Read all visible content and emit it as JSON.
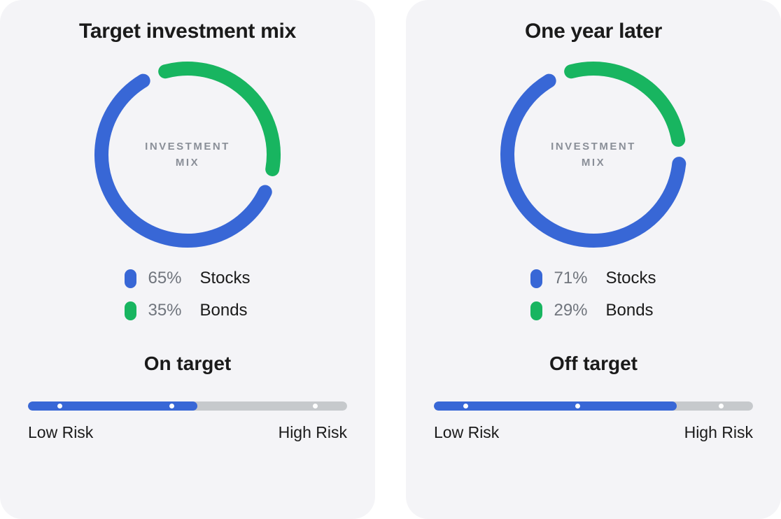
{
  "colors": {
    "stocks": "#3867d6",
    "bonds": "#18b560",
    "card_bg": "#f4f4f7",
    "bar_bg": "#c6c9cc",
    "dot": "#ffffff",
    "center_text": "#8a8f98",
    "pct_text": "#70757d",
    "text": "#1a1a1a"
  },
  "donut": {
    "size": 270,
    "stroke": 20,
    "start_angle_deg": -15,
    "gap_deg": 16,
    "center_line1": "INVESTMENT",
    "center_line2": "MIX"
  },
  "risk_bar": {
    "dot_positions_pct": [
      10,
      45,
      90
    ],
    "low_label": "Low Risk",
    "high_label": "High Risk"
  },
  "cards": [
    {
      "title": "Target investment mix",
      "series": [
        {
          "key": "stocks",
          "label": "Stocks",
          "value": 65,
          "color": "#3867d6"
        },
        {
          "key": "bonds",
          "label": "Bonds",
          "value": 35,
          "color": "#18b560"
        }
      ],
      "status": "On target",
      "risk_fill_pct": 53
    },
    {
      "title": "One year later",
      "series": [
        {
          "key": "stocks",
          "label": "Stocks",
          "value": 71,
          "color": "#3867d6"
        },
        {
          "key": "bonds",
          "label": "Bonds",
          "value": 29,
          "color": "#18b560"
        }
      ],
      "status": "Off target",
      "risk_fill_pct": 76
    }
  ]
}
